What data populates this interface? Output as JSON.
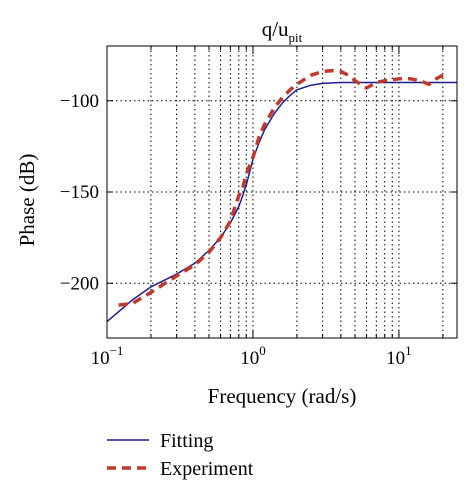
{
  "chart_data": {
    "type": "line",
    "title": "q/u",
    "title_subscript": "pit",
    "xlabel": "Frequency (rad/s)",
    "ylabel": "Phase (dB)",
    "x_scale": "log",
    "xlim": [
      0.1,
      25
    ],
    "ylim": [
      -230,
      -70
    ],
    "x_ticks": [
      {
        "value": 0.1,
        "base": "10",
        "exp": "−1"
      },
      {
        "value": 1,
        "base": "10",
        "exp": "0"
      },
      {
        "value": 10,
        "base": "10",
        "exp": "1"
      }
    ],
    "y_ticks": [
      {
        "value": -100,
        "label": "−100"
      },
      {
        "value": -150,
        "label": "−150"
      },
      {
        "value": -200,
        "label": "−200"
      }
    ],
    "grid": "dotted",
    "legend_position": "below",
    "series": [
      {
        "name": "Fitting",
        "color": "#1f1f8f",
        "style": "solid",
        "points": [
          [
            0.1,
            -221
          ],
          [
            0.15,
            -209
          ],
          [
            0.2,
            -202
          ],
          [
            0.3,
            -195
          ],
          [
            0.4,
            -189
          ],
          [
            0.5,
            -182
          ],
          [
            0.6,
            -175
          ],
          [
            0.7,
            -167
          ],
          [
            0.8,
            -158
          ],
          [
            0.85,
            -152
          ],
          [
            0.9,
            -146
          ],
          [
            0.95,
            -139
          ],
          [
            1.0,
            -132
          ],
          [
            1.1,
            -123
          ],
          [
            1.2,
            -116
          ],
          [
            1.4,
            -107
          ],
          [
            1.6,
            -101
          ],
          [
            1.8,
            -97
          ],
          [
            2.0,
            -94
          ],
          [
            2.5,
            -91.5
          ],
          [
            3.0,
            -90.5
          ],
          [
            4.0,
            -90
          ],
          [
            6.0,
            -90
          ],
          [
            10,
            -90
          ],
          [
            15,
            -90
          ],
          [
            25,
            -90
          ]
        ]
      },
      {
        "name": "Experiment",
        "color": "#c0392b",
        "style": "dashed",
        "points": [
          [
            0.12,
            -212
          ],
          [
            0.15,
            -211
          ],
          [
            0.2,
            -205
          ],
          [
            0.25,
            -200
          ],
          [
            0.3,
            -196
          ],
          [
            0.4,
            -190
          ],
          [
            0.5,
            -183
          ],
          [
            0.6,
            -175
          ],
          [
            0.7,
            -166
          ],
          [
            0.8,
            -152
          ],
          [
            0.85,
            -148
          ],
          [
            0.9,
            -140
          ],
          [
            1.0,
            -131
          ],
          [
            1.1,
            -120
          ],
          [
            1.2,
            -113
          ],
          [
            1.4,
            -104
          ],
          [
            1.6,
            -98
          ],
          [
            1.8,
            -94
          ],
          [
            2.0,
            -91
          ],
          [
            2.5,
            -86
          ],
          [
            3.0,
            -84
          ],
          [
            3.5,
            -83.5
          ],
          [
            4.0,
            -84
          ],
          [
            4.5,
            -86
          ],
          [
            5.0,
            -89
          ],
          [
            6.0,
            -93
          ],
          [
            7.0,
            -90
          ],
          [
            8.0,
            -89
          ],
          [
            10,
            -88
          ],
          [
            12,
            -88
          ],
          [
            14,
            -89
          ],
          [
            16,
            -91
          ],
          [
            18,
            -88
          ],
          [
            20,
            -86
          ]
        ]
      }
    ]
  }
}
